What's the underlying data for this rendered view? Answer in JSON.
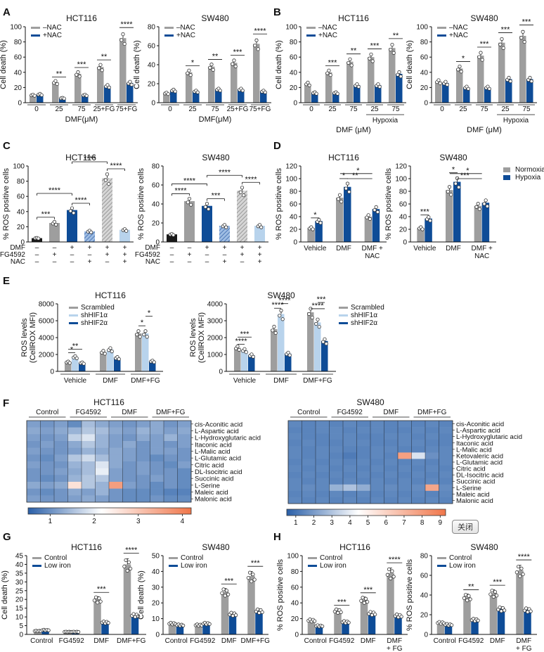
{
  "colors": {
    "gray": "#9e9e9e",
    "blue": "#0e4c97",
    "black": "#1a1a1a",
    "lightblue": "#b8d3ec",
    "hatchgray": "#b0b0b0",
    "hatchblue": "#5f86c2"
  },
  "close_button": {
    "label": "关闭"
  },
  "chart_data": [
    {
      "panel": "A",
      "title": "HCT116",
      "type": "bar",
      "ylabel": "Cell death (%)",
      "xlabel": "DMF(μM)",
      "ylim": [
        0,
        100
      ],
      "yticks": [
        0,
        20,
        40,
        60,
        80,
        100
      ],
      "categories": [
        "0",
        "25",
        "75",
        "25+FG",
        "75+FG"
      ],
      "legend": [
        "–NAC",
        "+NAC"
      ],
      "series": [
        {
          "name": "–NAC",
          "values": [
            10,
            27,
            38,
            47,
            85
          ]
        },
        {
          "name": "+NAC",
          "values": [
            11,
            6,
            10,
            22,
            26
          ]
        }
      ],
      "significance": [
        "",
        "**",
        "***",
        "**",
        "****"
      ]
    },
    {
      "panel": "A",
      "title": "SW480",
      "type": "bar",
      "ylabel": "Cell death (%)",
      "xlabel": "DMF(μM)",
      "ylim": [
        0,
        80
      ],
      "yticks": [
        0,
        20,
        40,
        60,
        80
      ],
      "categories": [
        "0",
        "25",
        "75",
        "25+FG",
        "75+FG"
      ],
      "legend": [
        "–NAC",
        "+NAC"
      ],
      "series": [
        {
          "name": "–NAC",
          "values": [
            10,
            32,
            38,
            42,
            62
          ]
        },
        {
          "name": "+NAC",
          "values": [
            13,
            12,
            14,
            14,
            12
          ]
        }
      ],
      "significance": [
        "",
        "*",
        "**",
        "***",
        "****"
      ]
    },
    {
      "panel": "B",
      "title": "HCT116",
      "type": "bar",
      "ylabel": "Cell death (%)",
      "xlabel": "DMF (μM)",
      "group_label": "Hypoxia",
      "ylim": [
        0,
        100
      ],
      "yticks": [
        0,
        20,
        40,
        60,
        80,
        100
      ],
      "categories": [
        "0",
        "25",
        "75",
        "25",
        "75"
      ],
      "legend": [
        "–NAC",
        "+NAC"
      ],
      "series": [
        {
          "name": "–NAC",
          "values": [
            25,
            40,
            54,
            60,
            72
          ]
        },
        {
          "name": "+NAC",
          "values": [
            13,
            13,
            23,
            23,
            38
          ]
        }
      ],
      "significance": [
        "",
        "***",
        "**",
        "***",
        "**"
      ]
    },
    {
      "panel": "B",
      "title": "SW480",
      "type": "bar",
      "ylabel": "Cell death (%)",
      "xlabel": "DMF (μM)",
      "group_label": "Hypoxia",
      "ylim": [
        0,
        100
      ],
      "yticks": [
        0,
        20,
        40,
        60,
        80,
        100
      ],
      "categories": [
        "0",
        "25",
        "75",
        "25",
        "75"
      ],
      "legend": [
        "–NAC",
        "+NAC"
      ],
      "series": [
        {
          "name": "–NAC",
          "values": [
            28,
            45,
            62,
            79,
            88
          ]
        },
        {
          "name": "+NAC",
          "values": [
            26,
            20,
            20,
            31,
            31
          ]
        }
      ],
      "significance": [
        "",
        "*",
        "***",
        "***",
        "***"
      ]
    },
    {
      "panel": "C",
      "title": "HCT116",
      "type": "bar",
      "ylabel": "% ROS positive cells",
      "ylim": [
        0,
        100
      ],
      "yticks": [
        0,
        20,
        40,
        60,
        80,
        100
      ],
      "row_labels": [
        "DMF",
        "FG4592",
        "NAC"
      ],
      "rows": [
        [
          "–",
          "–",
          "+",
          "+",
          "+",
          "+"
        ],
        [
          "–",
          "+",
          "–",
          "–",
          "+",
          "+"
        ],
        [
          "–",
          "–",
          "–",
          "+",
          "–",
          "+"
        ]
      ],
      "values": [
        5,
        25,
        42,
        14,
        84,
        16
      ],
      "styles": [
        "black",
        "gray",
        "blue",
        "hatchblue",
        "hatchgray",
        "lightblue"
      ],
      "brackets": [
        [
          0,
          1,
          "***"
        ],
        [
          0,
          2,
          "****"
        ],
        [
          2,
          3,
          "****"
        ],
        [
          2,
          4,
          "****"
        ],
        [
          4,
          5,
          "****"
        ]
      ]
    },
    {
      "panel": "C",
      "title": "SW480",
      "type": "bar",
      "ylabel": "% ROS positive cells",
      "ylim": [
        0,
        80
      ],
      "yticks": [
        0,
        20,
        40,
        60,
        80
      ],
      "row_labels": [
        "DMF",
        "FG4592",
        "NAC"
      ],
      "rows": [
        [
          "–",
          "–",
          "+",
          "+",
          "+",
          "+"
        ],
        [
          "–",
          "+",
          "–",
          "–",
          "+",
          "+"
        ],
        [
          "–",
          "–",
          "–",
          "+",
          "–",
          "+"
        ]
      ],
      "values": [
        8,
        43,
        38,
        17,
        54,
        17
      ],
      "styles": [
        "black",
        "gray",
        "blue",
        "hatchblue",
        "hatchgray",
        "lightblue"
      ],
      "brackets": [
        [
          0,
          1,
          "****"
        ],
        [
          0,
          2,
          "****"
        ],
        [
          2,
          3,
          "***"
        ],
        [
          2,
          4,
          "****"
        ],
        [
          4,
          5,
          "****"
        ]
      ]
    },
    {
      "panel": "D",
      "title": "HCT116",
      "type": "bar",
      "ylabel": "% ROS positive cells",
      "ylim": [
        0,
        120
      ],
      "yticks": [
        0,
        20,
        40,
        60,
        80,
        100,
        120
      ],
      "categories": [
        "Vehicle",
        "DMF",
        "DMF + NAC"
      ],
      "series": [
        {
          "name": "Normoxia",
          "values": [
            22,
            70,
            40
          ]
        },
        {
          "name": "Hypoxia",
          "values": [
            33,
            87,
            52
          ]
        }
      ]
    },
    {
      "panel": "D",
      "title": "SW480",
      "type": "bar",
      "ylabel": "% ROS positive cells",
      "ylim": [
        0,
        120
      ],
      "yticks": [
        0,
        20,
        40,
        60,
        80,
        100,
        120
      ],
      "categories": [
        "Vehicle",
        "DMF",
        "DMF + NAC"
      ],
      "legend": [
        "Normoxia",
        "Hypoxia"
      ],
      "series": [
        {
          "name": "Normoxia",
          "values": [
            22,
            82,
            57
          ]
        },
        {
          "name": "Hypoxia",
          "values": [
            37,
            95,
            62
          ]
        }
      ]
    },
    {
      "panel": "E",
      "title": "HCT116",
      "type": "bar",
      "ylabel": "ROS levels (CellROX MFI)",
      "ylim": [
        0,
        8000
      ],
      "yticks": [
        0,
        2000,
        4000,
        6000,
        8000
      ],
      "categories": [
        "Vehicle",
        "DMF",
        "DMF+FG"
      ],
      "legend": [
        "Scrambled",
        "shHIF1α",
        "shHIF2α"
      ],
      "series": [
        {
          "name": "Scrambled",
          "values": [
            1100,
            2300,
            4500
          ]
        },
        {
          "name": "shHIF1α",
          "values": [
            1700,
            2600,
            4500
          ]
        },
        {
          "name": "shHIF2α",
          "values": [
            1000,
            1600,
            1200
          ]
        }
      ]
    },
    {
      "panel": "E",
      "title": "SW480",
      "type": "bar",
      "ylabel": "ROS levels (CellROX MFI)",
      "ylim": [
        0,
        4000
      ],
      "yticks": [
        0,
        1000,
        2000,
        3000,
        4000
      ],
      "categories": [
        "Vehicle",
        "DMF",
        "DMF+FG"
      ],
      "legend": [
        "Scrambled",
        "shHIF1α",
        "shHIF2α"
      ],
      "series": [
        {
          "name": "Scrambled",
          "values": [
            1400,
            2500,
            3500
          ]
        },
        {
          "name": "shHIF1α",
          "values": [
            1250,
            3400,
            2900
          ]
        },
        {
          "name": "shHIF2α",
          "values": [
            950,
            1050,
            1800
          ]
        }
      ]
    },
    {
      "panel": "F",
      "title": "HCT116",
      "type": "heatmap",
      "groups": [
        "Control",
        "FG4592",
        "DMF",
        "DMF+FG"
      ],
      "rows": [
        "cis-Aconitic acid",
        "L-Aspartic acid",
        "L-Hydroxyglutaric acid",
        "Itaconic acid",
        "L-Malic acid",
        "L-Glutamic acid",
        "Citric acid",
        "DL-Isocitric acid",
        "Succinic acid",
        "L-Serine",
        "Maleic acid",
        "Malonic acid"
      ],
      "scale": [
        0.5,
        4.2
      ],
      "ticks": [
        1,
        2,
        3,
        4
      ],
      "values": [
        [
          1.2,
          1.1,
          1.2,
          1.0,
          1.5,
          1.3,
          1.2,
          1.1,
          1.2,
          1.3,
          1.1,
          1.2
        ],
        [
          1.3,
          1.2,
          1.3,
          1.4,
          1.6,
          1.5,
          1.3,
          1.2,
          1.4,
          1.3,
          1.2,
          1.3
        ],
        [
          1.2,
          1.1,
          1.2,
          1.7,
          1.9,
          1.4,
          1.2,
          1.1,
          1.3,
          1.2,
          1.4,
          1.2
        ],
        [
          1.1,
          1.2,
          1.1,
          1.3,
          1.6,
          1.4,
          1.2,
          1.3,
          1.1,
          1.2,
          1.1,
          1.2
        ],
        [
          1.2,
          1.1,
          1.1,
          1.2,
          1.4,
          1.3,
          1.3,
          1.2,
          1.1,
          1.2,
          1.2,
          1.1
        ],
        [
          1.1,
          1.0,
          1.2,
          1.6,
          1.8,
          1.5,
          1.3,
          1.2,
          1.1,
          1.0,
          1.1,
          1.1
        ],
        [
          1.2,
          1.1,
          1.1,
          1.4,
          1.5,
          1.9,
          1.3,
          1.1,
          1.2,
          1.1,
          1.0,
          1.2
        ],
        [
          1.1,
          1.1,
          1.2,
          1.3,
          1.5,
          2.0,
          1.2,
          1.1,
          1.2,
          1.1,
          1.1,
          1.0
        ],
        [
          1.1,
          1.0,
          1.1,
          1.4,
          1.6,
          1.6,
          1.2,
          1.1,
          1.1,
          1.2,
          1.1,
          1.0
        ],
        [
          1.3,
          1.2,
          1.3,
          2.6,
          1.6,
          1.4,
          3.6,
          1.2,
          1.1,
          1.0,
          1.1,
          1.0
        ],
        [
          1.1,
          1.0,
          1.1,
          1.3,
          1.2,
          1.4,
          1.1,
          1.0,
          1.0,
          1.0,
          0.9,
          0.9
        ],
        [
          1.2,
          1.1,
          1.1,
          1.2,
          1.3,
          1.2,
          1.1,
          1.0,
          1.0,
          1.1,
          1.0,
          1.0
        ]
      ]
    },
    {
      "panel": "F",
      "title": "SW480",
      "type": "heatmap",
      "groups": [
        "Control",
        "FG4592",
        "DMF",
        "DMF+FG"
      ],
      "rows": [
        "cis-Aconitic acid",
        "L-Aspartic acid",
        "L-Hydroxyglutaric acid",
        "Itaconic acid",
        "L-Malic acid",
        "Ketovaleric acid",
        "L-Glutamic acid",
        "Citric acid",
        "DL-Isocitric acid",
        "Succinic acid",
        "L-Serine",
        "Maleic acid",
        "Malonic acid"
      ],
      "scale": [
        0.5,
        9.3
      ],
      "ticks": [
        1,
        2,
        3,
        4,
        5,
        6,
        7,
        8,
        9
      ],
      "values": [
        [
          1.6,
          1.5,
          1.6,
          1.5,
          1.6,
          1.5,
          1.6,
          1.5,
          1.6,
          1.5,
          1.6,
          1.5
        ],
        [
          1.5,
          1.5,
          1.6,
          1.6,
          1.5,
          1.6,
          1.6,
          1.5,
          1.5,
          1.6,
          1.5,
          1.6
        ],
        [
          1.6,
          1.5,
          1.5,
          1.6,
          1.6,
          1.5,
          1.5,
          1.6,
          1.6,
          1.5,
          1.6,
          1.5
        ],
        [
          1.5,
          1.6,
          1.5,
          1.5,
          1.6,
          1.6,
          1.5,
          1.5,
          1.6,
          1.6,
          1.5,
          1.5
        ],
        [
          1.6,
          1.5,
          1.6,
          1.6,
          1.5,
          1.5,
          1.6,
          1.6,
          1.5,
          1.5,
          1.6,
          1.6
        ],
        [
          1.6,
          1.5,
          1.6,
          1.5,
          1.3,
          1.5,
          1.6,
          1.5,
          7.8,
          3.8,
          1.8,
          1.6
        ],
        [
          1.5,
          1.6,
          1.5,
          1.6,
          1.5,
          1.6,
          1.5,
          1.6,
          1.5,
          1.6,
          1.5,
          1.6
        ],
        [
          1.6,
          1.5,
          1.6,
          1.5,
          1.6,
          1.5,
          1.6,
          1.5,
          1.6,
          1.5,
          1.6,
          1.5
        ],
        [
          1.5,
          1.6,
          1.5,
          1.6,
          1.5,
          1.6,
          1.5,
          1.6,
          1.5,
          1.6,
          1.5,
          1.6
        ],
        [
          1.6,
          1.5,
          1.6,
          1.5,
          1.6,
          1.5,
          1.6,
          1.5,
          1.6,
          1.5,
          1.6,
          1.5
        ],
        [
          1.6,
          1.7,
          1.6,
          2.6,
          3.0,
          2.5,
          1.6,
          1.7,
          1.6,
          1.7,
          7.6,
          1.7
        ],
        [
          1.5,
          1.6,
          1.5,
          1.6,
          1.5,
          1.6,
          1.5,
          1.6,
          1.5,
          1.6,
          1.5,
          1.6
        ],
        [
          1.6,
          1.5,
          1.6,
          1.5,
          1.6,
          1.5,
          1.6,
          1.5,
          1.6,
          1.5,
          1.6,
          1.5
        ]
      ]
    },
    {
      "panel": "G",
      "title": "HCT116",
      "type": "bar",
      "ylabel": "Cell death (%)",
      "ylim": [
        0,
        45
      ],
      "yticks": [
        0,
        5,
        10,
        15,
        20,
        25,
        30,
        35,
        40,
        45
      ],
      "categories": [
        "Control",
        "FG4592",
        "DMF",
        "DMF+FG"
      ],
      "legend": [
        "Control",
        "Low iron"
      ],
      "series": [
        {
          "name": "Control",
          "values": [
            2,
            1.5,
            20,
            40
          ]
        },
        {
          "name": "Low iron",
          "values": [
            2.5,
            1.5,
            7,
            11
          ]
        }
      ],
      "significance": [
        "",
        "",
        "***",
        "****"
      ]
    },
    {
      "panel": "G",
      "title": "SW480",
      "type": "bar",
      "ylabel": "Cell death (%)",
      "ylim": [
        0,
        50
      ],
      "yticks": [
        0,
        10,
        20,
        30,
        40,
        50
      ],
      "categories": [
        "Control",
        "FG4592",
        "DMF",
        "DMF+FG"
      ],
      "legend": [
        "Control",
        "Low iron"
      ],
      "series": [
        {
          "name": "Control",
          "values": [
            7,
            6,
            27,
            37
          ]
        },
        {
          "name": "Low iron",
          "values": [
            6,
            7,
            13,
            15
          ]
        }
      ],
      "significance": [
        "",
        "",
        "***",
        "***"
      ]
    },
    {
      "panel": "H",
      "title": "HCT116",
      "type": "bar",
      "ylabel": "% ROS positive cells",
      "ylim": [
        0,
        100
      ],
      "yticks": [
        0,
        20,
        40,
        60,
        80,
        100
      ],
      "categories": [
        "Control",
        "FG4592",
        "DMF",
        "DMF + FG"
      ],
      "legend": [
        "Control",
        "Low iron"
      ],
      "series": [
        {
          "name": "Control",
          "values": [
            18,
            30,
            44,
            78
          ]
        },
        {
          "name": "Low iron",
          "values": [
            11,
            16,
            27,
            24
          ]
        }
      ],
      "significance": [
        "",
        "***",
        "***",
        "****"
      ]
    },
    {
      "panel": "H",
      "title": "SW480",
      "type": "bar",
      "ylabel": "% ROS positive cells",
      "ylim": [
        0,
        80
      ],
      "yticks": [
        0,
        20,
        40,
        60,
        80
      ],
      "categories": [
        "Control",
        "FG4592",
        "DMF",
        "DMF + FG"
      ],
      "legend": [
        "Control",
        "Low iron"
      ],
      "series": [
        {
          "name": "Control",
          "values": [
            12,
            38,
            42,
            65
          ]
        },
        {
          "name": "Low iron",
          "values": [
            10,
            15,
            26,
            25
          ]
        }
      ],
      "significance": [
        "",
        "**",
        "***",
        "****"
      ]
    }
  ]
}
